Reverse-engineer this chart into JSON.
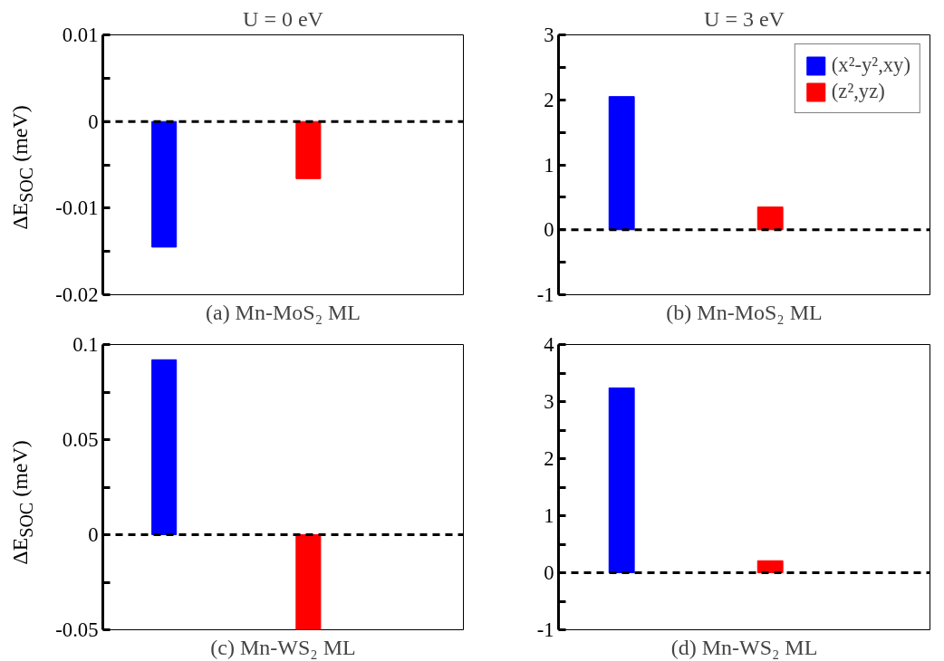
{
  "chart_data": [
    {
      "type": "bar",
      "title": "U = 0 eV",
      "ylabel": "ΔE$_{SOC}$ (meV)",
      "xlabel": "(a) Mn-MoS₂ ML",
      "categories": [
        null,
        null
      ],
      "tick_labels": "y",
      "series": [
        {
          "color": "#0000ff",
          "values": [
            -0.0145,
            null
          ]
        },
        {
          "color": "#ff0000",
          "values": [
            null,
            -0.0066
          ]
        }
      ],
      "ylim": [
        -0.02,
        0.01
      ],
      "yticks": [
        -0.02,
        {
          "value": -0.015,
          "label": null
        },
        -0.01,
        {
          "value": -0.005,
          "label": null
        },
        0,
        {
          "value": 0.005,
          "label": null
        },
        0.01
      ],
      "ref_lines": [
        {
          "axis": "y",
          "value": 0,
          "color": "#000000",
          "line_style": "dashed"
        }
      ]
    },
    {
      "type": "bar",
      "title": "U = 3 eV",
      "xlabel": "(b) Mn-MoS₂ ML",
      "categories": [
        null,
        null
      ],
      "tick_labels": "y",
      "legend": "top right",
      "series": [
        {
          "name": "(x²-y²,xy)",
          "color": "#0000ff",
          "values": [
            2.05,
            null
          ]
        },
        {
          "name": "(z²,yz)",
          "color": "#ff0000",
          "values": [
            null,
            0.35
          ]
        }
      ],
      "ylim": [
        -1,
        3
      ],
      "yticks": [
        -1,
        {
          "value": -0.5,
          "label": null
        },
        0,
        {
          "value": 0.5,
          "label": null
        },
        1,
        {
          "value": 1.5,
          "label": null
        },
        2,
        {
          "value": 2.5,
          "label": null
        },
        3
      ],
      "ref_lines": [
        {
          "axis": "y",
          "value": 0,
          "color": "#000000",
          "line_style": "dashed"
        }
      ]
    },
    {
      "type": "bar",
      "ylabel": "ΔE$_{SOC}$ (meV)",
      "xlabel": "(c) Mn-WS₂ ML",
      "categories": [
        null,
        null
      ],
      "tick_labels": "y",
      "series": [
        {
          "color": "#0000ff",
          "values": [
            0.092,
            null
          ]
        },
        {
          "color": "#ff0000",
          "values": [
            null,
            -0.05
          ]
        }
      ],
      "ylim": [
        -0.05,
        0.1
      ],
      "yticks": [
        -0.05,
        {
          "value": -0.025,
          "label": null
        },
        0,
        {
          "value": 0.025,
          "label": null
        },
        0.05,
        {
          "value": 0.075,
          "label": null
        },
        0.1
      ],
      "ref_lines": [
        {
          "axis": "y",
          "value": 0,
          "color": "#000000",
          "line_style": "dashed"
        }
      ]
    },
    {
      "type": "bar",
      "xlabel": "(d) Mn-WS₂ ML",
      "categories": [
        null,
        null
      ],
      "tick_labels": "y",
      "series": [
        {
          "color": "#0000ff",
          "values": [
            3.24,
            null
          ]
        },
        {
          "color": "#ff0000",
          "values": [
            null,
            0.21
          ]
        }
      ],
      "ylim": [
        -1,
        4
      ],
      "yticks": [
        -1,
        {
          "value": -0.5,
          "label": null
        },
        0,
        {
          "value": 0.5,
          "label": null
        },
        1,
        {
          "value": 1.5,
          "label": null
        },
        2,
        {
          "value": 2.5,
          "label": null
        },
        3,
        {
          "value": 3.5,
          "label": null
        },
        4
      ],
      "ref_lines": [
        {
          "axis": "y",
          "value": 0,
          "color": "#000000",
          "line_style": "dashed"
        }
      ]
    }
  ]
}
